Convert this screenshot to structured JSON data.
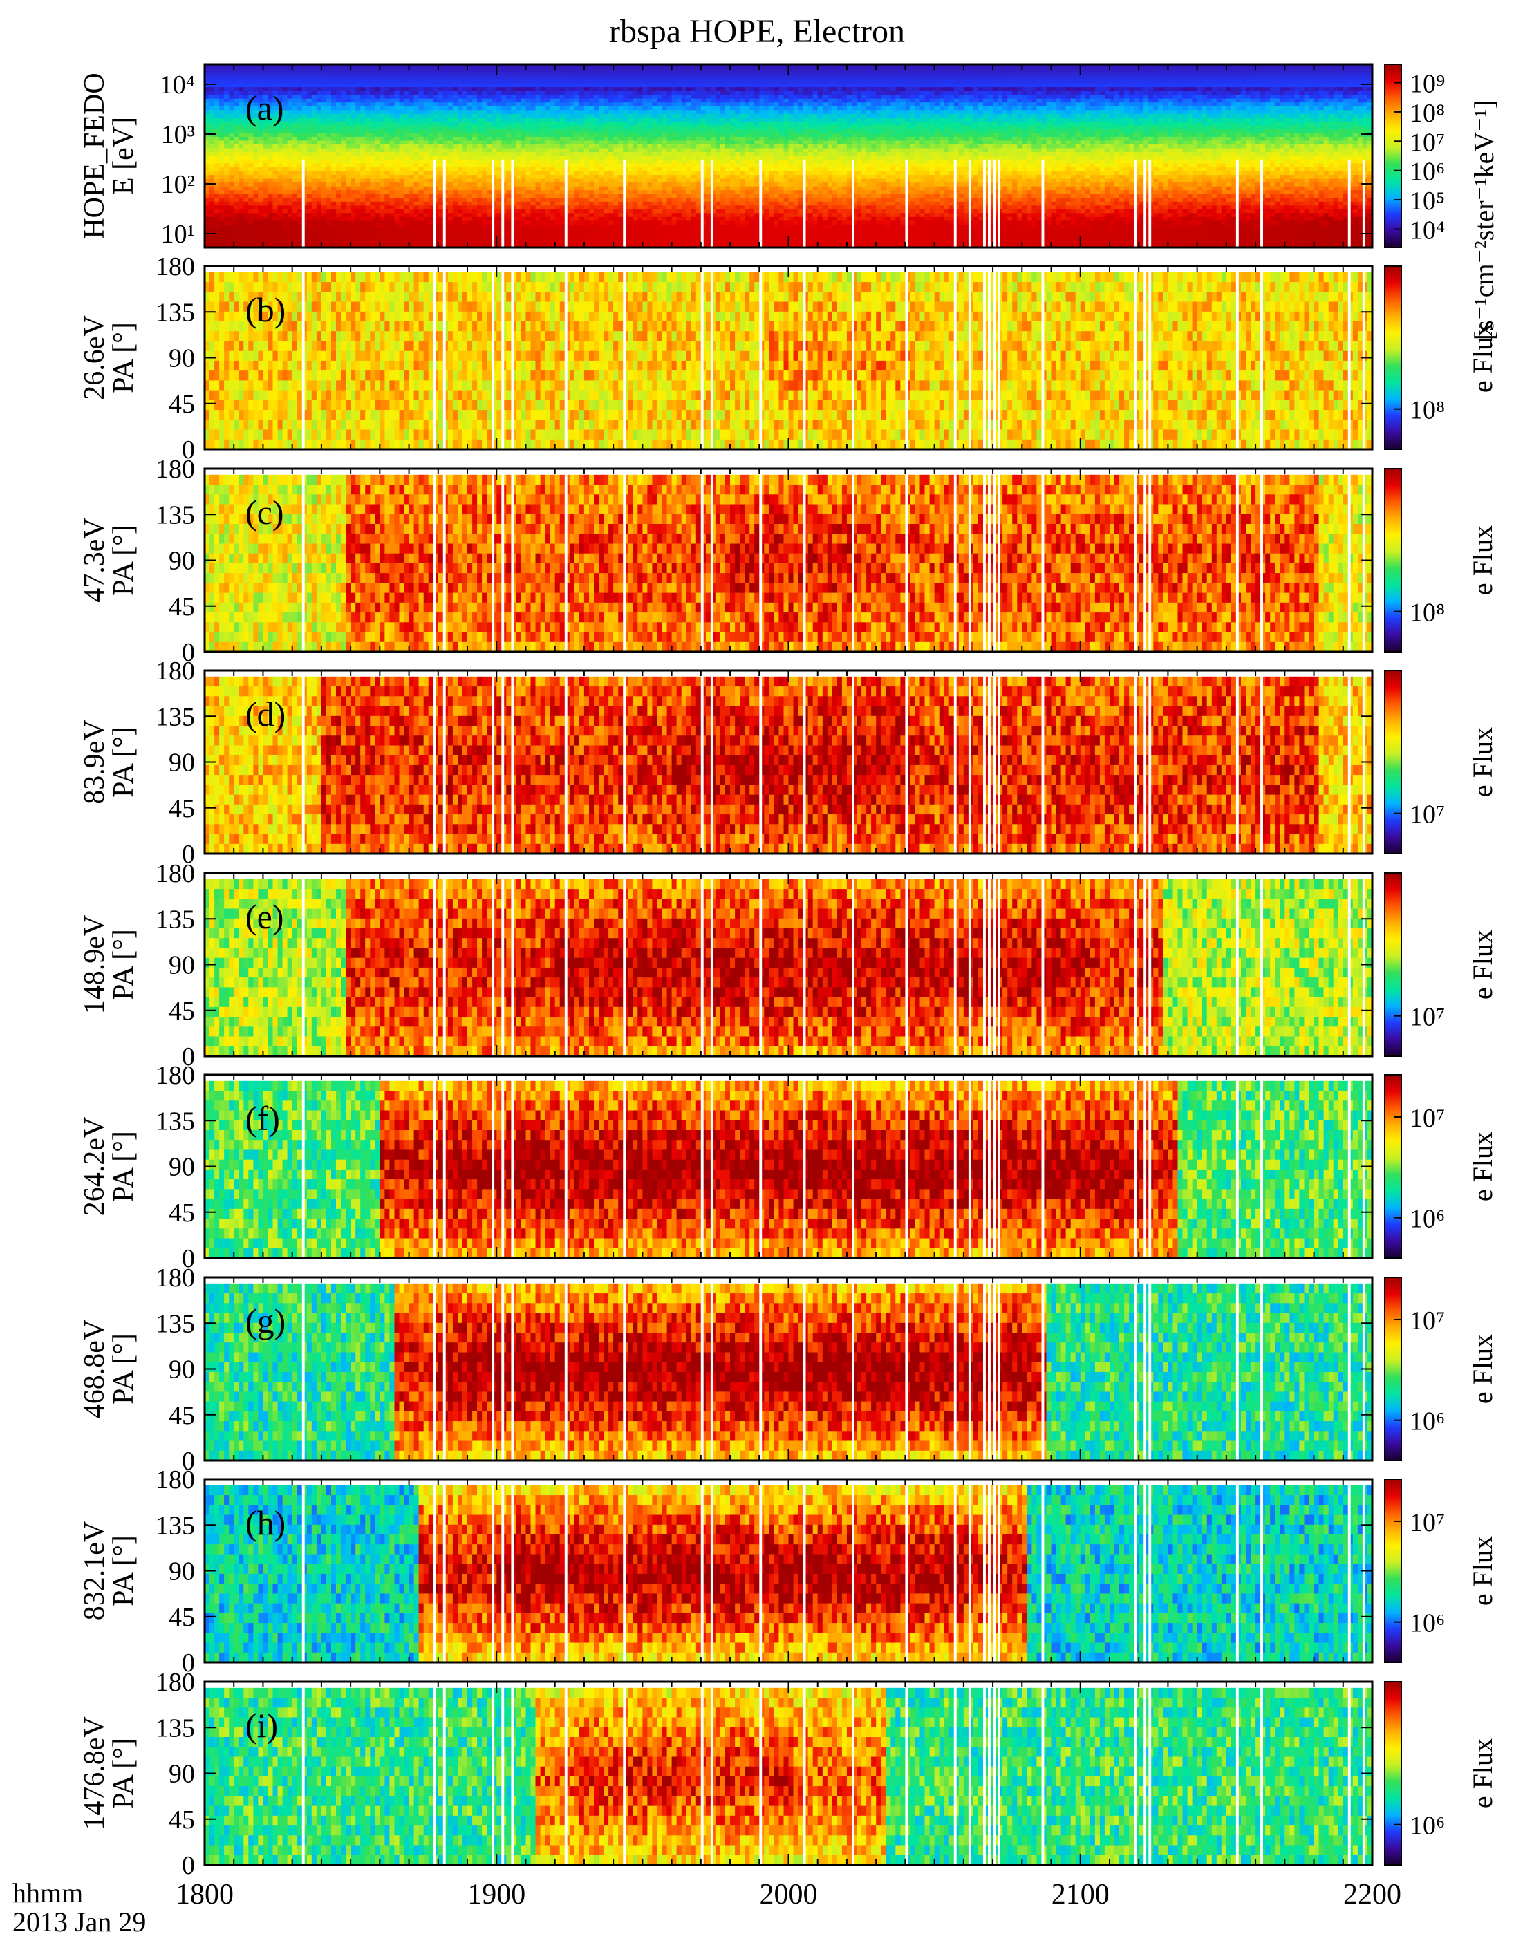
{
  "title": "rbspa HOPE, Electron",
  "footer": {
    "line1": "hhmm",
    "line2": "2013 Jan 29"
  },
  "chart_data": {
    "type": "heatmap",
    "title": "rbspa HOPE, Electron",
    "x_axis": {
      "ticks": [
        "1800",
        "1900",
        "2000",
        "2100",
        "2200"
      ],
      "xlim": [
        "18:00",
        "22:00"
      ],
      "minor_per_major": 10
    },
    "colormap": [
      "#1a0030",
      "#3a0a9e",
      "#1f3cff",
      "#00b4ff",
      "#00e5a0",
      "#34e05a",
      "#c8f022",
      "#fff000",
      "#ffb000",
      "#ff5a00",
      "#e80000",
      "#a00000"
    ],
    "panels": [
      {
        "id": "a",
        "label": "(a)",
        "kind": "energy",
        "ylabel": [
          "HOPE_FEDO",
          "E [eV]"
        ],
        "yticks": [
          "10¹",
          "10²",
          "10³",
          "10⁴"
        ],
        "cbar_title": "[s⁻¹cm⁻²ster⁻¹keV⁻¹]",
        "cbar_ticks": [
          "10⁴",
          "10⁵",
          "10⁶",
          "10⁷",
          "10⁸",
          "10⁹"
        ]
      },
      {
        "id": "b",
        "label": "(b)",
        "kind": "pa",
        "ylabel": [
          "26.6eV",
          "PA [°]"
        ],
        "yticks": [
          "0",
          "45",
          "90",
          "135",
          "180"
        ],
        "cbar_title": "e Flux",
        "cbar_ticks": [
          "10⁸"
        ],
        "active": [
          0,
          1
        ],
        "peak": [
          0.48,
          0.6
        ],
        "base": 0.48,
        "amp": 0.3,
        "pa_focus": 0.2
      },
      {
        "id": "c",
        "label": "(c)",
        "kind": "pa",
        "ylabel": [
          "47.3eV",
          "PA [°]"
        ],
        "yticks": [
          "0",
          "45",
          "90",
          "135",
          "180"
        ],
        "cbar_title": "e Flux",
        "cbar_ticks": [
          "10⁸"
        ],
        "active": [
          0.12,
          0.95
        ],
        "peak": [
          0.45,
          0.55
        ],
        "base": 0.62,
        "amp": 0.27,
        "pa_focus": 0.6
      },
      {
        "id": "d",
        "label": "(d)",
        "kind": "pa",
        "ylabel": [
          "83.9eV",
          "PA [°]"
        ],
        "yticks": [
          "0",
          "45",
          "90",
          "135",
          "180"
        ],
        "cbar_title": "e Flux",
        "cbar_ticks": [
          "10⁷"
        ],
        "active": [
          0.1,
          0.95
        ],
        "peak": [
          0.4,
          0.6
        ],
        "base": 0.68,
        "amp": 0.24,
        "pa_focus": 0.7
      },
      {
        "id": "e",
        "label": "(e)",
        "kind": "pa",
        "ylabel": [
          "148.9eV",
          "PA [°]"
        ],
        "yticks": [
          "0",
          "45",
          "90",
          "135",
          "180"
        ],
        "cbar_title": "e Flux",
        "cbar_ticks": [
          "10⁷"
        ],
        "active": [
          0.12,
          0.82
        ],
        "peak": [
          0.3,
          0.75
        ],
        "base": 0.55,
        "amp": 0.38,
        "pa_focus": 0.85
      },
      {
        "id": "f",
        "label": "(f)",
        "kind": "pa",
        "ylabel": [
          "264.2eV",
          "PA [°]"
        ],
        "yticks": [
          "0",
          "45",
          "90",
          "135",
          "180"
        ],
        "cbar_title": "e Flux",
        "cbar_ticks": [
          "10⁶",
          "10⁷"
        ],
        "active": [
          0.15,
          0.83
        ],
        "peak": [
          0.2,
          0.8
        ],
        "base": 0.45,
        "amp": 0.5,
        "pa_focus": 0.95
      },
      {
        "id": "g",
        "label": "(g)",
        "kind": "pa",
        "ylabel": [
          "468.8eV",
          "PA [°]"
        ],
        "yticks": [
          "0",
          "45",
          "90",
          "135",
          "180"
        ],
        "cbar_title": "e Flux",
        "cbar_ticks": [
          "10⁶",
          "10⁷"
        ],
        "active": [
          0.16,
          0.72
        ],
        "peak": [
          0.2,
          0.7
        ],
        "base": 0.4,
        "amp": 0.55,
        "pa_focus": 1.0
      },
      {
        "id": "h",
        "label": "(h)",
        "kind": "pa",
        "ylabel": [
          "832.1eV",
          "PA [°]"
        ],
        "yticks": [
          "0",
          "45",
          "90",
          "135",
          "180"
        ],
        "cbar_title": "e Flux",
        "cbar_ticks": [
          "10⁶",
          "10⁷"
        ],
        "active": [
          0.18,
          0.7
        ],
        "peak": [
          0.25,
          0.65
        ],
        "base": 0.35,
        "amp": 0.58,
        "pa_focus": 1.0
      },
      {
        "id": "i",
        "label": "(i)",
        "kind": "pa",
        "ylabel": [
          "1476.8eV",
          "PA [°]"
        ],
        "yticks": [
          "0",
          "45",
          "90",
          "135",
          "180"
        ],
        "cbar_title": "e Flux",
        "cbar_ticks": [
          "10⁶"
        ],
        "active": [
          0.28,
          0.58
        ],
        "peak": [
          0.32,
          0.5
        ],
        "base": 0.42,
        "amp": 0.42,
        "pa_focus": 0.9
      }
    ]
  }
}
